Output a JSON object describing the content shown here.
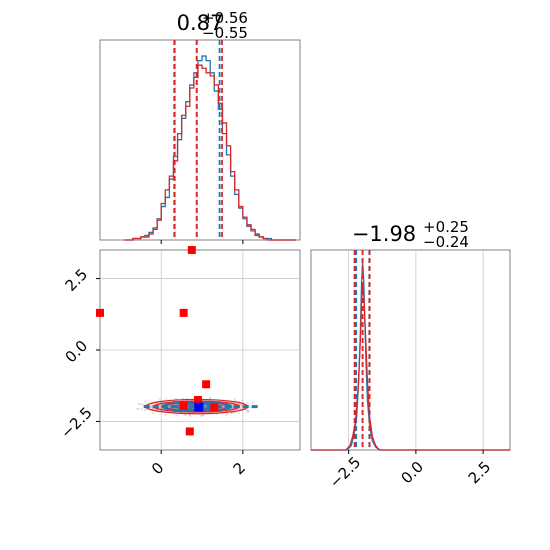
{
  "chart_data": {
    "type": "corner",
    "colors": {
      "series_a": "#1f77b4",
      "series_b": "#d62728",
      "markers": "#ff0000",
      "truth": "#0000ff",
      "grid": "#c8c8c8",
      "frame": "#808080"
    },
    "titles": {
      "param1": {
        "value": "0.87",
        "plus": "+0.56",
        "minus": "−0.55"
      },
      "param2": {
        "value": "−1.98",
        "plus": "+0.25",
        "minus": "−0.24"
      }
    },
    "axes": {
      "x1_range": [
        -1.5,
        3.4
      ],
      "x2_range": [
        -3.9,
        3.5
      ],
      "y2_range": [
        -3.5,
        3.5
      ],
      "x1_ticks": [
        0,
        2
      ],
      "x1_tick_labels": [
        "0",
        "2"
      ],
      "x2_ticks": [
        -2.5,
        0.0,
        2.5
      ],
      "x2_tick_labels": [
        "−2.5",
        "0.0",
        "2.5"
      ],
      "y2_ticks": [
        2.5,
        0.0,
        -2.5
      ],
      "y2_tick_labels": [
        "2.5",
        "0.0",
        "−2.5"
      ],
      "grid": true,
      "tick_label_rotation": 45
    },
    "hist1": {
      "bins_x": [
        -0.9,
        -0.8,
        -0.7,
        -0.6,
        -0.5,
        -0.4,
        -0.3,
        -0.2,
        -0.1,
        0.0,
        0.1,
        0.2,
        0.3,
        0.4,
        0.5,
        0.6,
        0.7,
        0.8,
        0.9,
        1.0,
        1.1,
        1.2,
        1.3,
        1.4,
        1.5,
        1.6,
        1.7,
        1.8,
        1.9,
        2.0,
        2.1,
        2.2,
        2.3,
        2.4,
        2.5,
        2.6,
        2.7,
        2.8,
        2.9,
        3.0,
        3.1,
        3.2,
        3.3
      ],
      "series": [
        {
          "name": "",
          "color_key": "series_a",
          "quantiles": [
            0.33,
            0.87,
            1.43
          ],
          "counts": [
            0,
            0,
            1,
            1,
            2,
            3,
            5,
            8,
            14,
            22,
            28,
            40,
            55,
            66,
            80,
            91,
            102,
            110,
            118,
            121,
            118,
            110,
            98,
            86,
            70,
            56,
            42,
            30,
            21,
            14,
            9,
            7,
            4,
            2,
            1,
            1,
            0,
            0,
            0,
            0,
            0,
            0
          ]
        },
        {
          "name": "",
          "color_key": "series_b",
          "quantiles": [
            0.32,
            0.87,
            1.49
          ],
          "counts": [
            0,
            0,
            1,
            1,
            2,
            2,
            4,
            7,
            13,
            24,
            33,
            42,
            52,
            70,
            82,
            88,
            100,
            107,
            115,
            113,
            110,
            108,
            102,
            90,
            77,
            62,
            45,
            33,
            22,
            15,
            10,
            6,
            3,
            2,
            1,
            0,
            0,
            0,
            0,
            0,
            0,
            0
          ]
        }
      ]
    },
    "hist2": {
      "series": [
        {
          "name": "",
          "color_key": "series_a",
          "quantiles": [
            -2.22,
            -1.98,
            -1.73
          ],
          "points": [
            [
              -3.9,
              0
            ],
            [
              -2.55,
              0
            ],
            [
              -2.4,
              3
            ],
            [
              -2.3,
              10
            ],
            [
              -2.2,
              22
            ],
            [
              -2.12,
              48
            ],
            [
              -2.06,
              80
            ],
            [
              -2.02,
              110
            ],
            [
              -1.98,
              123
            ],
            [
              -1.94,
              112
            ],
            [
              -1.9,
              85
            ],
            [
              -1.85,
              55
            ],
            [
              -1.8,
              32
            ],
            [
              -1.72,
              16
            ],
            [
              -1.62,
              6
            ],
            [
              -1.5,
              2
            ],
            [
              -1.35,
              0
            ],
            [
              3.5,
              0
            ]
          ]
        },
        {
          "name": "",
          "color_key": "series_b",
          "quantiles": [
            -2.28,
            -1.98,
            -1.72
          ],
          "points": [
            [
              -3.9,
              0
            ],
            [
              -2.6,
              0
            ],
            [
              -2.45,
              3
            ],
            [
              -2.35,
              9
            ],
            [
              -2.25,
              18
            ],
            [
              -2.15,
              40
            ],
            [
              -2.07,
              70
            ],
            [
              -2.02,
              98
            ],
            [
              -1.98,
              108
            ],
            [
              -1.93,
              100
            ],
            [
              -1.87,
              75
            ],
            [
              -1.8,
              45
            ],
            [
              -1.72,
              22
            ],
            [
              -1.62,
              9
            ],
            [
              -1.5,
              3
            ],
            [
              -1.35,
              0
            ],
            [
              3.5,
              0
            ]
          ]
        }
      ]
    },
    "contour": {
      "center": [
        0.87,
        -1.98
      ],
      "levels_b": [
        [
          1.25,
          0.25
        ],
        [
          1.05,
          0.19
        ],
        [
          0.8,
          0.14
        ],
        [
          0.5,
          0.09
        ]
      ],
      "levels_a": [
        [
          0.85,
          0.16
        ],
        [
          0.5,
          0.1
        ]
      ]
    },
    "markers": [
      [
        -1.5,
        1.3
      ],
      [
        0.75,
        3.5
      ],
      [
        0.55,
        1.3
      ],
      [
        1.1,
        -1.2
      ],
      [
        0.9,
        -1.75
      ],
      [
        1.3,
        -2.0
      ],
      [
        0.7,
        -2.85
      ],
      [
        0.55,
        -1.95
      ]
    ],
    "truth": [
      0.92,
      -2.0
    ]
  }
}
